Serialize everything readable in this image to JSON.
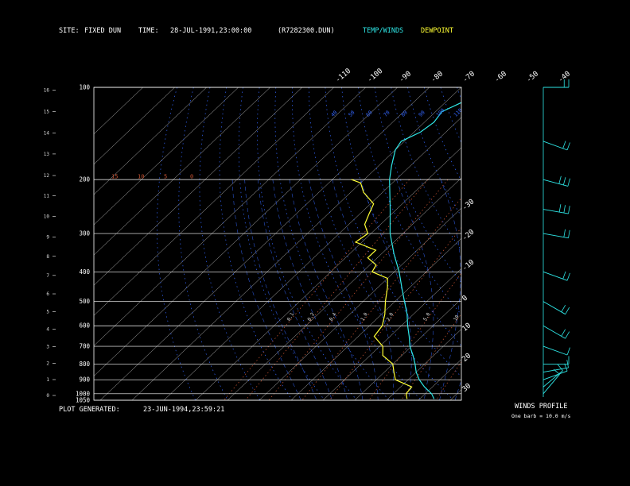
{
  "header": {
    "site_label": "SITE:",
    "site_value": "FIXED DUN",
    "time_label": "TIME:",
    "time_value": "28-JUL-1991,23:00:00",
    "file_value": "(R7282300.DUN)",
    "legend_temp": "TEMP/WINDS",
    "legend_dew": "DEWPOINT"
  },
  "footer": {
    "generated_label": "PLOT GENERATED:",
    "generated_value": "23-JUN-1994,23:59:21",
    "winds_title": "WINDS PROFILE",
    "winds_note": "One barb = 10.0 m/s"
  },
  "colors": {
    "temperature": "#2ee6e6",
    "dewpoint": "#ffff33",
    "dry_adiabat": "#ffffff",
    "moist_adiabat": "#3366ff",
    "mixing_ratio": "#cc5533",
    "isobar": "#ffffff"
  },
  "chart_data": {
    "type": "line",
    "chart_kind": "skew-T log-P thermodynamic diagram",
    "y_scale": "log",
    "y_axis": {
      "pressure_ticks": [
        100,
        200,
        300,
        400,
        500,
        600,
        700,
        800,
        900,
        1000,
        1050
      ],
      "height_ticks_km": [
        0,
        1,
        2,
        3,
        4,
        5,
        6,
        7,
        8,
        9,
        10,
        11,
        12,
        13,
        14,
        15,
        16
      ],
      "height_tick_pressures": [
        1013,
        899,
        795,
        701,
        616,
        540,
        472,
        411,
        356,
        308,
        264,
        226,
        194,
        165,
        141,
        120,
        102
      ],
      "plim": [
        100,
        1050
      ]
    },
    "isotherm_ticks_c": [
      -110,
      -100,
      -90,
      -80,
      -70,
      -60,
      -50,
      -40,
      -30,
      -20,
      -10,
      0,
      10,
      20,
      30
    ],
    "skew_labels_top": [
      "-110",
      "-100",
      "-90",
      "-80",
      "-70",
      "-60",
      "-50",
      "-40"
    ],
    "skew_labels_right": [
      "-30",
      "-20",
      "-10",
      "0",
      "10",
      "20",
      "30"
    ],
    "dry_adiabat_labels": [
      "40",
      "50",
      "60",
      "70",
      "80",
      "90",
      "100",
      "110",
      "120",
      "130",
      "140",
      "150",
      "160"
    ],
    "moist_adiabat_labels": [
      "15",
      "10",
      "5",
      "0"
    ],
    "mixing_ratio_labels": [
      "0.1",
      "0.2",
      "0.4",
      "1.0",
      "2.0",
      "5.0",
      "10",
      "20"
    ],
    "series": [
      {
        "name": "TEMP/WINDS",
        "color": "#2ee6e6",
        "points": [
          [
            1040,
            24.5
          ],
          [
            1000,
            22
          ],
          [
            950,
            17.5
          ],
          [
            900,
            13.5
          ],
          [
            850,
            10
          ],
          [
            800,
            7
          ],
          [
            750,
            3.5
          ],
          [
            700,
            -0.5
          ],
          [
            650,
            -4
          ],
          [
            600,
            -8
          ],
          [
            550,
            -12
          ],
          [
            500,
            -17
          ],
          [
            450,
            -22.5
          ],
          [
            400,
            -28.5
          ],
          [
            350,
            -36
          ],
          [
            300,
            -44
          ],
          [
            250,
            -52
          ],
          [
            200,
            -62
          ],
          [
            180,
            -66
          ],
          [
            160,
            -70
          ],
          [
            150,
            -71
          ],
          [
            140,
            -68
          ],
          [
            130,
            -67
          ],
          [
            120,
            -68
          ],
          [
            110,
            -64
          ],
          [
            104,
            -62
          ],
          [
            100,
            -63
          ]
        ]
      },
      {
        "name": "DEWPOINT",
        "color": "#ffff33",
        "points": [
          [
            1040,
            16
          ],
          [
            1000,
            14
          ],
          [
            950,
            13.5
          ],
          [
            900,
            6
          ],
          [
            850,
            3
          ],
          [
            800,
            0
          ],
          [
            750,
            -6
          ],
          [
            700,
            -9
          ],
          [
            650,
            -15
          ],
          [
            600,
            -16
          ],
          [
            550,
            -19
          ],
          [
            500,
            -23
          ],
          [
            450,
            -27
          ],
          [
            420,
            -30
          ],
          [
            400,
            -37
          ],
          [
            380,
            -38
          ],
          [
            360,
            -43
          ],
          [
            340,
            -43
          ],
          [
            320,
            -52
          ],
          [
            300,
            -51
          ],
          [
            280,
            -55
          ],
          [
            260,
            -57
          ],
          [
            240,
            -59
          ],
          [
            220,
            -66
          ],
          [
            205,
            -70
          ],
          [
            200,
            -74
          ]
        ]
      }
    ],
    "wind_barbs": [
      {
        "p": 1000,
        "dir": 220,
        "speed": 5
      },
      {
        "p": 950,
        "dir": 230,
        "speed": 8
      },
      {
        "p": 900,
        "dir": 250,
        "speed": 12
      },
      {
        "p": 850,
        "dir": 260,
        "speed": 12
      },
      {
        "p": 800,
        "dir": 270,
        "speed": 10
      },
      {
        "p": 700,
        "dir": 290,
        "speed": 10
      },
      {
        "p": 600,
        "dir": 300,
        "speed": 15
      },
      {
        "p": 500,
        "dir": 300,
        "speed": 15
      },
      {
        "p": 400,
        "dir": 290,
        "speed": 20
      },
      {
        "p": 300,
        "dir": 280,
        "speed": 22
      },
      {
        "p": 250,
        "dir": 280,
        "speed": 25
      },
      {
        "p": 200,
        "dir": 285,
        "speed": 25
      },
      {
        "p": 150,
        "dir": 290,
        "speed": 20
      },
      {
        "p": 100,
        "dir": 270,
        "speed": 15
      }
    ]
  }
}
